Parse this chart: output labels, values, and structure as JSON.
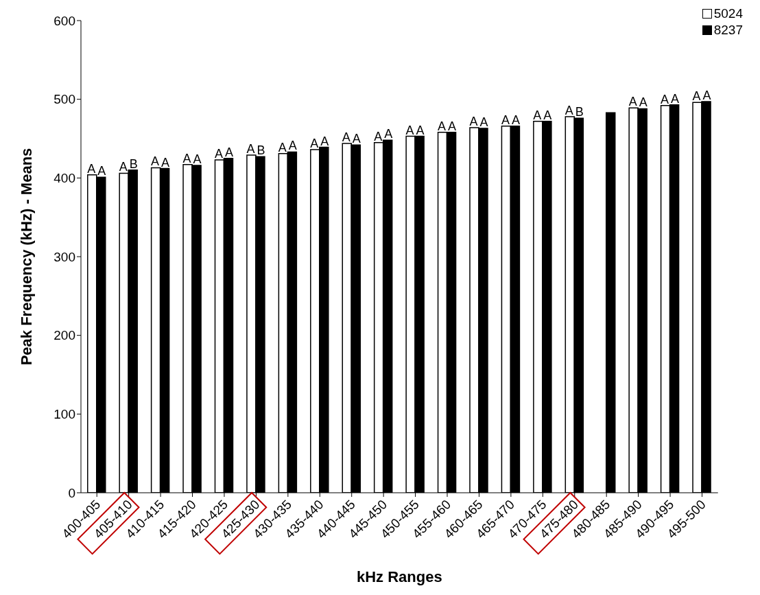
{
  "chart_data": {
    "type": "bar",
    "xlabel": "kHz Ranges",
    "ylabel": "Peak Frequency (kHz) - Means",
    "categories": [
      "400-405",
      "405-410",
      "410-415",
      "415-420",
      "420-425",
      "425-430",
      "430-435",
      "435-440",
      "440-445",
      "445-450",
      "450-455",
      "455-460",
      "460-465",
      "465-470",
      "470-475",
      "475-480",
      "480-485",
      "485-490",
      "490-495",
      "495-500"
    ],
    "series": [
      {
        "name": "5024",
        "color": "#ffffff",
        "values": [
          404,
          406,
          413,
          417,
          423,
          429,
          431,
          436,
          444,
          445,
          453,
          458,
          464,
          466,
          472,
          478,
          null,
          489,
          492,
          496
        ],
        "value_labels": [
          "A",
          "A",
          "A",
          "A",
          "A",
          "A",
          "A",
          "A",
          "A",
          "A",
          "A",
          "A",
          "A",
          "A",
          "A",
          "A",
          null,
          "A",
          "A",
          "A"
        ]
      },
      {
        "name": "8237",
        "color": "#000000",
        "values": [
          401,
          410,
          412,
          416,
          425,
          427,
          433,
          439,
          442,
          448,
          453,
          458,
          463,
          466,
          472,
          476,
          483,
          488,
          493,
          497
        ],
        "value_labels": [
          "A",
          "B",
          "A",
          "A",
          "A",
          "B",
          "A",
          "A",
          "A",
          "A",
          "A",
          "A",
          "A",
          "A",
          "A",
          "B",
          null,
          "A",
          "A",
          "A"
        ]
      }
    ],
    "ylim": [
      0,
      600
    ],
    "yticks": [
      0,
      100,
      200,
      300,
      400,
      500,
      600
    ],
    "grid": false,
    "legend": "top right"
  }
}
